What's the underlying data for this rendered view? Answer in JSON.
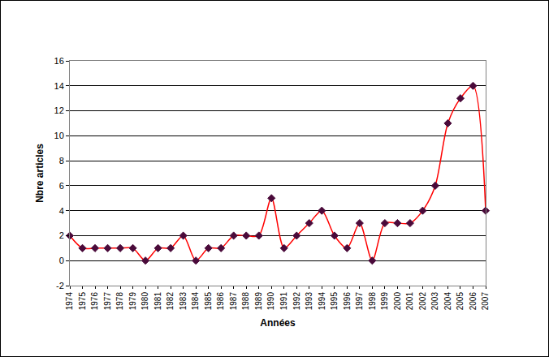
{
  "chart_data": {
    "type": "line",
    "xlabel": "Années",
    "ylabel": "Nbre articles",
    "x": [
      1974,
      1975,
      1976,
      1977,
      1978,
      1979,
      1980,
      1981,
      1982,
      1983,
      1984,
      1985,
      1986,
      1987,
      1988,
      1989,
      1990,
      1991,
      1992,
      1993,
      1994,
      1995,
      1996,
      1997,
      1998,
      1999,
      2000,
      2001,
      2002,
      2003,
      2004,
      2005,
      2006,
      2007
    ],
    "values": [
      2,
      1,
      1,
      1,
      1,
      1,
      0,
      1,
      1,
      2,
      0,
      1,
      1,
      2,
      2,
      2,
      5,
      1,
      2,
      3,
      4,
      2,
      1,
      3,
      0,
      3,
      3,
      3,
      4,
      6,
      11,
      13,
      14,
      4
    ],
    "color": "#ff0000",
    "marker": "diamond",
    "xlim": [
      1974,
      2007
    ],
    "xticks": [
      1974,
      1975,
      1976,
      1977,
      1978,
      1979,
      1980,
      1981,
      1982,
      1983,
      1984,
      1985,
      1986,
      1987,
      1988,
      1989,
      1990,
      1991,
      1992,
      1993,
      1994,
      1995,
      1996,
      1997,
      1998,
      1999,
      2000,
      2001,
      2002,
      2003,
      2004,
      2005,
      2006,
      2007
    ],
    "ylim": [
      -2,
      16
    ],
    "yticks": [
      -2,
      0,
      2,
      4,
      6,
      8,
      10,
      12,
      14,
      16
    ],
    "grid": true
  }
}
